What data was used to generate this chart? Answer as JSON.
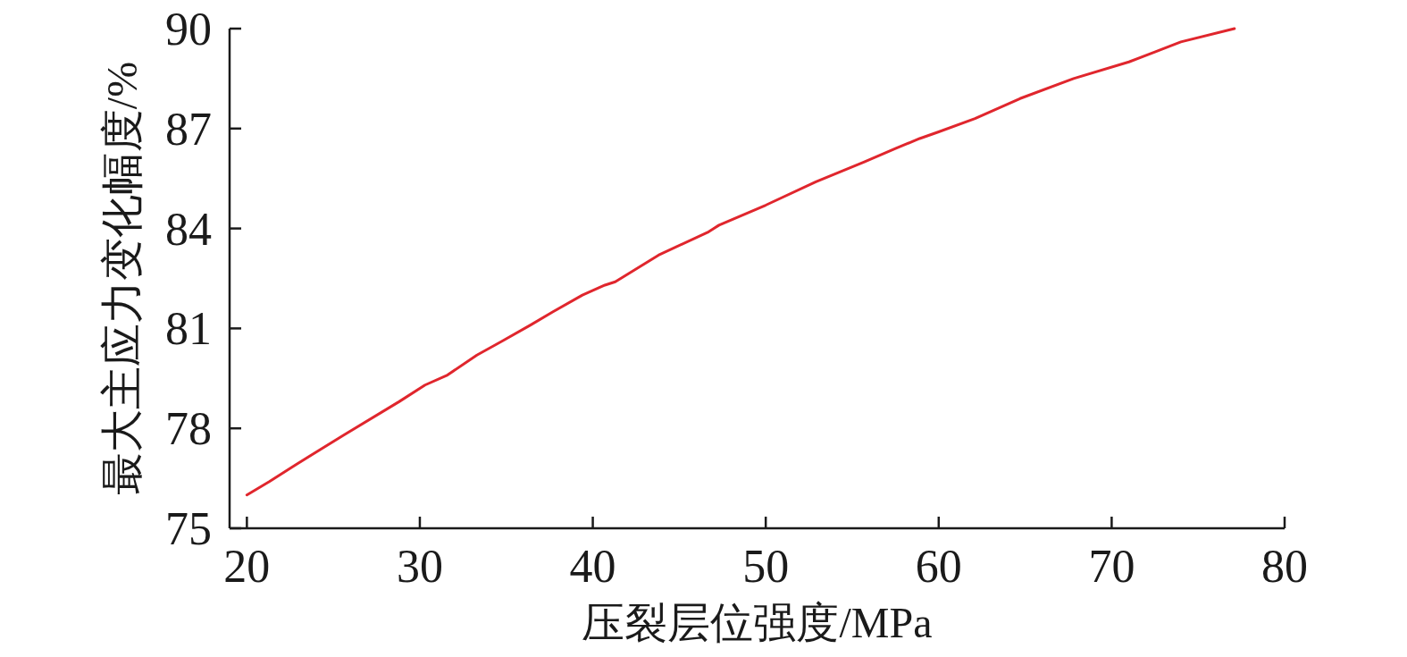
{
  "chart_data": {
    "type": "line",
    "xlabel": "压裂层位强度/MPa",
    "ylabel": "最大主应力变化幅度/%",
    "x": [
      20,
      21.3,
      22.8,
      25.6,
      28.8,
      30.3,
      31.6,
      33.3,
      34.7,
      36.4,
      37.7,
      39.4,
      40.7,
      41.3,
      43.8,
      46.7,
      47.3,
      50.0,
      52.9,
      55.7,
      57.5,
      58.9,
      60.0,
      62.1,
      64.7,
      67.8,
      71.0,
      72.5,
      74.0,
      77.1
    ],
    "series": [
      {
        "color": "#e0262d",
        "values": [
          76.0,
          76.4,
          76.9,
          77.8,
          78.8,
          79.3,
          79.6,
          80.2,
          80.6,
          81.1,
          81.5,
          82.0,
          82.3,
          82.4,
          83.2,
          83.9,
          84.1,
          84.7,
          85.4,
          86.0,
          86.4,
          86.7,
          86.9,
          87.3,
          87.9,
          88.5,
          89.0,
          89.3,
          89.6,
          90.0
        ]
      }
    ],
    "xlim": [
      19,
      80
    ],
    "ylim": [
      75,
      90
    ],
    "xticks": [
      20,
      30,
      40,
      50,
      60,
      70,
      80
    ],
    "yticks": [
      75,
      78,
      81,
      84,
      87,
      90
    ]
  }
}
